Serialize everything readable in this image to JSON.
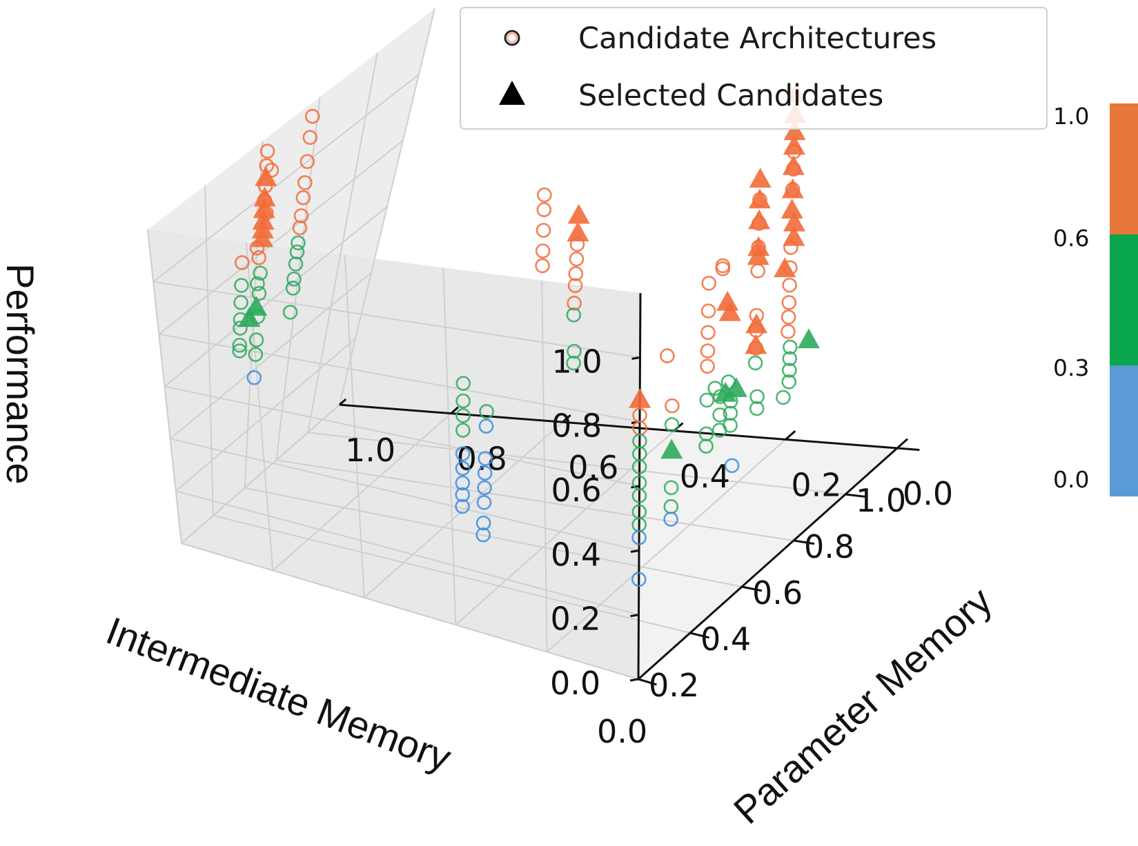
{
  "chart_data": {
    "type": "scatter",
    "xlabel": "Intermediate Memory",
    "ylabel": "Parameter Memory",
    "zlabel": "Performance",
    "xlim": [
      0,
      1
    ],
    "ylim": [
      0,
      1
    ],
    "zlim": [
      0,
      1.1
    ],
    "x_ticks": [
      "0.0",
      "0.2",
      "0.4",
      "0.6",
      "0.8",
      "1.0"
    ],
    "y_ticks": [
      "0.0",
      "0.2",
      "0.4",
      "0.6",
      "0.8",
      "1.0"
    ],
    "z_ticks": [
      "0.0",
      "0.2",
      "0.4",
      "0.6",
      "0.8",
      "1.0"
    ],
    "legend": {
      "position": "top-right",
      "entries": [
        {
          "label": "Candidate Architectures",
          "marker": "open-circle"
        },
        {
          "label": "Selected Candidates",
          "marker": "filled-triangle"
        }
      ]
    },
    "colorbar": {
      "ticks": [
        "1.0",
        "0.6",
        "0.3",
        "0.0"
      ],
      "bands": [
        {
          "from": 0.6,
          "to": 1.0,
          "color": "#e8773a"
        },
        {
          "from": 0.3,
          "to": 0.6,
          "color": "#0aa64c"
        },
        {
          "from": 0.0,
          "to": 0.3,
          "color": "#5b9bd5"
        }
      ]
    },
    "colors": {
      "orange": "#f26b3a",
      "green": "#2eaa5c",
      "blue": "#3b8de0"
    },
    "series": [
      {
        "marker": "circle",
        "points": [
          {
            "x": 0.0,
            "y": 0.0,
            "z": 0.82
          },
          {
            "x": 0.0,
            "y": 0.0,
            "z": 0.78
          },
          {
            "x": 0.0,
            "y": 0.0,
            "z": 0.74
          },
          {
            "x": 0.0,
            "y": 0.0,
            "z": 0.7
          },
          {
            "x": 0.0,
            "y": 0.0,
            "z": 0.66
          },
          {
            "x": 0.0,
            "y": 0.0,
            "z": 0.61
          },
          {
            "x": 0.0,
            "y": 0.0,
            "z": 0.57
          },
          {
            "x": 0.0,
            "y": 0.0,
            "z": 0.52
          },
          {
            "x": 0.0,
            "y": 0.0,
            "z": 0.48
          },
          {
            "x": 0.0,
            "y": 0.0,
            "z": 0.44
          },
          {
            "x": 0.0,
            "y": 0.0,
            "z": 0.31
          },
          {
            "x": 0.1,
            "y": 0.0,
            "z": 0.95
          },
          {
            "x": 0.12,
            "y": 0.0,
            "z": 0.78
          },
          {
            "x": 0.12,
            "y": 0.0,
            "z": 0.72
          },
          {
            "x": 0.12,
            "y": 0.0,
            "z": 0.52
          },
          {
            "x": 0.12,
            "y": 0.0,
            "z": 0.46
          },
          {
            "x": 0.12,
            "y": 0.0,
            "z": 0.42
          },
          {
            "x": 0.25,
            "y": 0.0,
            "z": 1.1
          },
          {
            "x": 0.25,
            "y": 0.0,
            "z": 1.01
          },
          {
            "x": 0.25,
            "y": 0.0,
            "z": 0.94
          },
          {
            "x": 0.25,
            "y": 0.0,
            "z": 0.88
          },
          {
            "x": 0.25,
            "y": 0.0,
            "z": 0.83
          },
          {
            "x": 0.25,
            "y": 0.0,
            "z": 0.72
          },
          {
            "x": 0.25,
            "y": 0.0,
            "z": 0.61
          },
          {
            "x": 0.25,
            "y": 0.0,
            "z": 0.57
          },
          {
            "x": 0.3,
            "y": 0.0,
            "z": 1.13
          },
          {
            "x": 0.3,
            "y": 0.0,
            "z": 1.12
          },
          {
            "x": 0.28,
            "y": 0.0,
            "z": 0.74
          },
          {
            "x": 0.3,
            "y": 0.0,
            "z": 0.7
          },
          {
            "x": 0.3,
            "y": 0.0,
            "z": 0.64
          },
          {
            "x": 0.3,
            "y": 0.0,
            "z": 0.59
          },
          {
            "x": 0.33,
            "y": 0.0,
            "z": 0.73
          },
          {
            "x": 0.34,
            "y": 0.0,
            "z": 0.66
          },
          {
            "x": 0.34,
            "y": 0.0,
            "z": 0.62
          },
          {
            "x": 0.34,
            "y": 0.0,
            "z": 0.58
          },
          {
            "x": 0.35,
            "y": 0.0,
            "z": 0.44
          },
          {
            "x": 0.43,
            "y": 0.0,
            "z": 1.28
          },
          {
            "x": 0.43,
            "y": 0.0,
            "z": 1.2
          },
          {
            "x": 0.43,
            "y": 0.0,
            "z": 1.12
          },
          {
            "x": 0.43,
            "y": 0.0,
            "z": 1.04
          },
          {
            "x": 0.43,
            "y": 0.0,
            "z": 0.89
          },
          {
            "x": 0.43,
            "y": 0.0,
            "z": 0.84
          },
          {
            "x": 0.43,
            "y": 0.0,
            "z": 0.78
          },
          {
            "x": 0.43,
            "y": 0.0,
            "z": 0.73
          },
          {
            "x": 0.44,
            "y": 0.0,
            "z": 0.61
          },
          {
            "x": 0.44,
            "y": 0.0,
            "z": 0.57
          },
          {
            "x": 0.55,
            "y": 0.0,
            "z": 1.38
          },
          {
            "x": 0.55,
            "y": 0.0,
            "z": 1.32
          },
          {
            "x": 0.55,
            "y": 0.0,
            "z": 1.25
          },
          {
            "x": 0.55,
            "y": 0.0,
            "z": 1.05
          },
          {
            "x": 0.55,
            "y": 0.0,
            "z": 0.98
          },
          {
            "x": 0.55,
            "y": 0.0,
            "z": 0.92
          },
          {
            "x": 0.55,
            "y": 0.0,
            "z": 0.86
          },
          {
            "x": 0.55,
            "y": 0.0,
            "z": 0.81
          },
          {
            "x": 0.55,
            "y": 0.0,
            "z": 0.76
          },
          {
            "x": 0.56,
            "y": 0.0,
            "z": 0.7
          },
          {
            "x": 0.56,
            "y": 0.0,
            "z": 0.66
          },
          {
            "x": 0.56,
            "y": 0.0,
            "z": 0.62
          },
          {
            "x": 0.56,
            "y": 0.0,
            "z": 0.58
          },
          {
            "x": 0.54,
            "y": 0.0,
            "z": 0.54
          },
          {
            "x": 0.36,
            "y": 0.4,
            "z": 1.22
          },
          {
            "x": 0.36,
            "y": 0.4,
            "z": 1.17
          },
          {
            "x": 0.36,
            "y": 0.4,
            "z": 1.1
          },
          {
            "x": 0.36,
            "y": 0.4,
            "z": 1.03
          },
          {
            "x": 0.36,
            "y": 0.4,
            "z": 0.98
          },
          {
            "x": 0.49,
            "y": 0.4,
            "z": 0.97
          },
          {
            "x": 0.49,
            "y": 0.4,
            "z": 0.92
          },
          {
            "x": 0.49,
            "y": 0.4,
            "z": 0.87
          },
          {
            "x": 0.49,
            "y": 0.4,
            "z": 0.83
          },
          {
            "x": 0.49,
            "y": 0.4,
            "z": 0.77
          },
          {
            "x": 0.49,
            "y": 0.4,
            "z": 0.73
          },
          {
            "x": 0.5,
            "y": 0.4,
            "z": 0.6
          },
          {
            "x": 0.5,
            "y": 0.4,
            "z": 0.56
          },
          {
            "x": 0.25,
            "y": 0.5,
            "z": 0.62
          },
          {
            "x": 0.25,
            "y": 0.5,
            "z": 0.56
          },
          {
            "x": 0.25,
            "y": 0.5,
            "z": 0.51
          },
          {
            "x": 0.25,
            "y": 0.5,
            "z": 0.46
          },
          {
            "x": 0.25,
            "y": 0.5,
            "z": 0.38
          },
          {
            "x": 0.25,
            "y": 0.5,
            "z": 0.33
          },
          {
            "x": 0.25,
            "y": 0.5,
            "z": 0.28
          },
          {
            "x": 0.25,
            "y": 0.5,
            "z": 0.24
          },
          {
            "x": 0.25,
            "y": 0.5,
            "z": 0.2
          },
          {
            "x": 0.35,
            "y": 0.5,
            "z": 0.46
          },
          {
            "x": 0.35,
            "y": 0.5,
            "z": 0.41
          },
          {
            "x": 0.35,
            "y": 0.5,
            "z": 0.3
          },
          {
            "x": 0.35,
            "y": 0.5,
            "z": 0.25
          },
          {
            "x": 0.35,
            "y": 0.5,
            "z": 0.2
          },
          {
            "x": 0.35,
            "y": 0.5,
            "z": 0.15
          },
          {
            "x": 0.35,
            "y": 0.5,
            "z": 0.08
          },
          {
            "x": 0.35,
            "y": 0.5,
            "z": 0.04
          },
          {
            "x": 0.42,
            "y": 1.0,
            "z": 1.15
          },
          {
            "x": 0.42,
            "y": 1.0,
            "z": 1.1
          },
          {
            "x": 0.44,
            "y": 1.0,
            "z": 1.07
          },
          {
            "x": 0.42,
            "y": 1.0,
            "z": 1.03
          },
          {
            "x": 0.42,
            "y": 1.0,
            "z": 0.98
          },
          {
            "x": 0.43,
            "y": 1.0,
            "z": 0.93
          },
          {
            "x": 0.4,
            "y": 1.0,
            "z": 0.83
          },
          {
            "x": 0.41,
            "y": 1.0,
            "z": 0.79
          },
          {
            "x": 0.42,
            "y": 1.0,
            "z": 0.73
          },
          {
            "x": 0.41,
            "y": 1.0,
            "z": 0.7
          },
          {
            "x": 0.42,
            "y": 1.0,
            "z": 0.66
          },
          {
            "x": 0.42,
            "y": 1.0,
            "z": 0.58
          },
          {
            "x": 0.42,
            "y": 1.0,
            "z": 0.5
          },
          {
            "x": 0.42,
            "y": 1.0,
            "z": 0.45
          },
          {
            "x": 0.42,
            "y": 1.0,
            "z": 0.37
          },
          {
            "x": 0.34,
            "y": 1.0,
            "z": 0.82
          },
          {
            "x": 0.34,
            "y": 1.0,
            "z": 0.74
          },
          {
            "x": 0.34,
            "y": 1.0,
            "z": 0.68
          },
          {
            "x": 0.34,
            "y": 1.0,
            "z": 0.62
          },
          {
            "x": 0.34,
            "y": 1.0,
            "z": 0.59
          },
          {
            "x": 0.34,
            "y": 1.0,
            "z": 0.53
          },
          {
            "x": 0.34,
            "y": 1.0,
            "z": 0.51
          },
          {
            "x": 0.58,
            "y": 1.0,
            "z": 1.15
          },
          {
            "x": 0.58,
            "y": 1.0,
            "z": 1.08
          },
          {
            "x": 0.58,
            "y": 1.0,
            "z": 1.0
          },
          {
            "x": 0.58,
            "y": 1.0,
            "z": 0.93
          },
          {
            "x": 0.58,
            "y": 1.0,
            "z": 0.88
          },
          {
            "x": 0.58,
            "y": 1.0,
            "z": 0.82
          },
          {
            "x": 0.58,
            "y": 1.0,
            "z": 0.78
          },
          {
            "x": 0.58,
            "y": 1.0,
            "z": 0.73
          },
          {
            "x": 0.58,
            "y": 1.0,
            "z": 0.7
          },
          {
            "x": 0.58,
            "y": 1.0,
            "z": 0.66
          },
          {
            "x": 0.58,
            "y": 1.0,
            "z": 0.61
          },
          {
            "x": 0.58,
            "y": 1.0,
            "z": 0.58
          },
          {
            "x": 0.58,
            "y": 1.0,
            "z": 0.5
          }
        ]
      },
      {
        "marker": "triangle",
        "points": [
          {
            "x": 0.0,
            "y": 0.0,
            "z": 0.87
          },
          {
            "x": 0.12,
            "y": 0.0,
            "z": 0.64
          },
          {
            "x": 0.32,
            "y": 0.0,
            "z": 0.7
          },
          {
            "x": 0.36,
            "y": 0.0,
            "z": 0.69
          },
          {
            "x": 0.32,
            "y": 0.0,
            "z": 1.0
          },
          {
            "x": 0.33,
            "y": 0.0,
            "z": 0.96
          },
          {
            "x": 0.43,
            "y": 0.0,
            "z": 1.35
          },
          {
            "x": 0.43,
            "y": 0.0,
            "z": 1.28
          },
          {
            "x": 0.43,
            "y": 0.0,
            "z": 1.21
          },
          {
            "x": 0.43,
            "y": 0.0,
            "z": 1.12
          },
          {
            "x": 0.43,
            "y": 0.0,
            "z": 1.09
          },
          {
            "x": 0.43,
            "y": 0.0,
            "z": 0.86
          },
          {
            "x": 0.43,
            "y": 0.0,
            "z": 0.79
          },
          {
            "x": 0.55,
            "y": 0.0,
            "z": 1.58
          },
          {
            "x": 0.55,
            "y": 0.0,
            "z": 1.51
          },
          {
            "x": 0.55,
            "y": 0.0,
            "z": 1.45
          },
          {
            "x": 0.55,
            "y": 0.0,
            "z": 1.4
          },
          {
            "x": 0.55,
            "y": 0.0,
            "z": 1.33
          },
          {
            "x": 0.55,
            "y": 0.0,
            "z": 1.25
          },
          {
            "x": 0.55,
            "y": 0.0,
            "z": 1.18
          },
          {
            "x": 0.56,
            "y": 0.0,
            "z": 1.13
          },
          {
            "x": 0.56,
            "y": 0.0,
            "z": 1.08
          },
          {
            "x": 0.53,
            "y": 0.0,
            "z": 0.99
          },
          {
            "x": 0.63,
            "y": 0.0,
            "z": 0.68
          },
          {
            "x": 0.49,
            "y": 0.4,
            "z": 1.07
          },
          {
            "x": 0.49,
            "y": 0.4,
            "z": 1.01
          },
          {
            "x": 0.42,
            "y": 1.0,
            "z": 1.06
          },
          {
            "x": 0.42,
            "y": 1.0,
            "z": 0.99
          },
          {
            "x": 0.42,
            "y": 1.0,
            "z": 0.95
          },
          {
            "x": 0.42,
            "y": 1.0,
            "z": 0.91
          },
          {
            "x": 0.42,
            "y": 1.0,
            "z": 0.88
          },
          {
            "x": 0.42,
            "y": 1.0,
            "z": 0.85
          },
          {
            "x": 0.38,
            "y": 1.0,
            "z": 0.6
          },
          {
            "x": 0.41,
            "y": 1.0,
            "z": 0.62
          }
        ]
      }
    ]
  }
}
